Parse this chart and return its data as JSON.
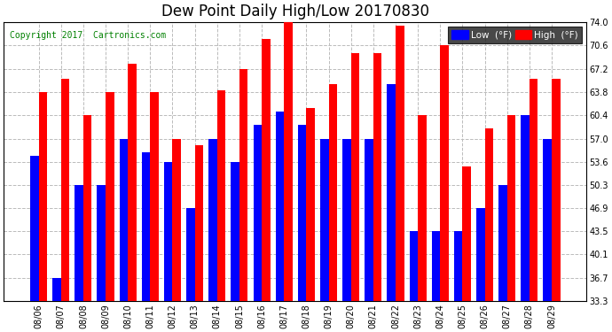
{
  "title": "Dew Point Daily High/Low 20170830",
  "copyright": "Copyright 2017  Cartronics.com",
  "legend_low": "Low  (°F)",
  "legend_high": "High  (°F)",
  "dates": [
    "08/06",
    "08/07",
    "08/08",
    "08/09",
    "08/10",
    "08/11",
    "08/12",
    "08/13",
    "08/14",
    "08/15",
    "08/16",
    "08/17",
    "08/18",
    "08/19",
    "08/20",
    "08/21",
    "08/22",
    "08/23",
    "08/24",
    "08/25",
    "08/26",
    "08/27",
    "08/28",
    "08/29"
  ],
  "low": [
    54.5,
    36.7,
    50.3,
    50.3,
    57.0,
    55.0,
    53.6,
    46.9,
    57.0,
    53.6,
    59.0,
    61.0,
    59.0,
    57.0,
    57.0,
    57.0,
    65.0,
    43.5,
    43.5,
    43.5,
    46.9,
    50.3,
    60.4,
    57.0
  ],
  "high": [
    63.8,
    65.8,
    60.4,
    63.8,
    68.0,
    63.8,
    57.0,
    56.0,
    64.0,
    67.2,
    71.5,
    74.0,
    61.5,
    65.0,
    69.5,
    69.5,
    73.5,
    60.4,
    70.6,
    53.0,
    58.5,
    60.4,
    65.8,
    65.8
  ],
  "ylim_min": 33.3,
  "ylim_max": 74.0,
  "yticks": [
    33.3,
    36.7,
    40.1,
    43.5,
    46.9,
    50.3,
    53.6,
    57.0,
    60.4,
    63.8,
    67.2,
    70.6,
    74.0
  ],
  "bar_width": 0.38,
  "low_color": "#0000ff",
  "high_color": "#ff0000",
  "bg_color": "#ffffff",
  "grid_color": "#bbbbbb",
  "title_fontsize": 12,
  "tick_fontsize": 7,
  "copyright_color": "#008000",
  "copyright_fontsize": 7,
  "legend_bg": "#1a1a1a",
  "legend_fontsize": 7.5
}
